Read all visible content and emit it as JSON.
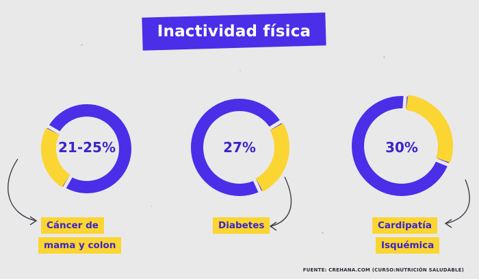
{
  "title": "Inactividad física",
  "colors": {
    "accent": "#4a2ee8",
    "highlight": "#fbd531",
    "background": "#e9e9ea"
  },
  "chart_data": [
    {
      "type": "pie",
      "center_label": "21-25%",
      "value_percent": 25,
      "caption_lines": [
        "Cáncer de",
        "mama y colon"
      ]
    },
    {
      "type": "pie",
      "center_label": "27%",
      "value_percent": 27,
      "caption_lines": [
        "Diabetes"
      ]
    },
    {
      "type": "pie",
      "center_label": "30%",
      "value_percent": 30,
      "caption_lines": [
        "Cardipatía",
        "Isquémica"
      ]
    }
  ],
  "source": "Fuente: crehana.com (Curso:Nutrición Saludable)"
}
